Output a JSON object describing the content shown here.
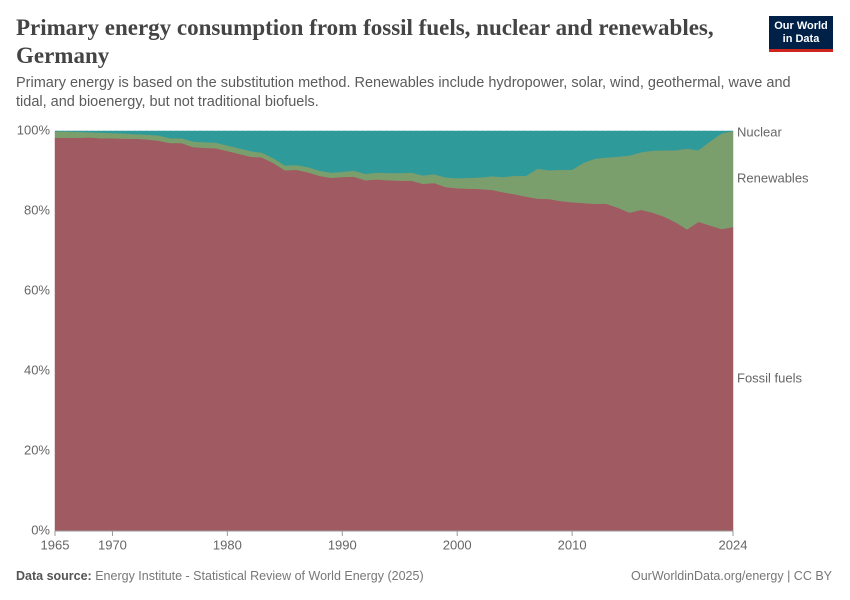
{
  "chart_data": {
    "type": "stacked-area",
    "title": "Primary energy consumption from fossil fuels, nuclear and renewables, Germany",
    "subtitle": "Primary energy is based on the substitution method. Renewables include hydropower, solar, wind, geothermal, wave and tidal, and bioenergy, but not traditional biofuels.",
    "logo": [
      "Our World",
      "in Data"
    ],
    "source_label": "Data source:",
    "source": "Energy Institute - Statistical Review of World Energy (2025)",
    "credit": "OurWorldinData.org/energy | CC BY",
    "x": [
      1965,
      1966,
      1967,
      1968,
      1969,
      1970,
      1971,
      1972,
      1973,
      1974,
      1975,
      1976,
      1977,
      1978,
      1979,
      1980,
      1981,
      1982,
      1983,
      1984,
      1985,
      1986,
      1987,
      1988,
      1989,
      1990,
      1991,
      1992,
      1993,
      1994,
      1995,
      1996,
      1997,
      1998,
      1999,
      2000,
      2001,
      2002,
      2003,
      2004,
      2005,
      2006,
      2007,
      2008,
      2009,
      2010,
      2011,
      2012,
      2013,
      2014,
      2015,
      2016,
      2017,
      2018,
      2019,
      2020,
      2021,
      2022,
      2023,
      2024
    ],
    "xlim": [
      1965,
      2024
    ],
    "xticks": [
      1965,
      1970,
      1980,
      1990,
      2000,
      2010,
      2024
    ],
    "ylim": [
      0,
      100
    ],
    "yticks": [
      {
        "value": 0,
        "label": "0%"
      },
      {
        "value": 20,
        "label": "20%"
      },
      {
        "value": 40,
        "label": "40%"
      },
      {
        "value": 60,
        "label": "60%"
      },
      {
        "value": 80,
        "label": "80%"
      },
      {
        "value": 100,
        "label": "100%"
      }
    ],
    "grid": true,
    "series": [
      {
        "name": "Fossil fuels",
        "color": "#a05a61",
        "label_color": "#883039",
        "values": [
          98.3,
          98.3,
          98.3,
          98.4,
          98.2,
          98.2,
          98.1,
          98.1,
          97.9,
          97.6,
          97.0,
          97.0,
          96.0,
          95.8,
          95.7,
          95.0,
          94.3,
          93.6,
          93.4,
          92.0,
          90.2,
          90.3,
          89.7,
          88.8,
          88.3,
          88.5,
          88.6,
          87.7,
          87.9,
          87.7,
          87.6,
          87.6,
          86.8,
          87.0,
          86.0,
          85.7,
          85.6,
          85.5,
          85.3,
          84.7,
          84.2,
          83.6,
          83.1,
          83.0,
          82.5,
          82.2,
          82.0,
          81.8,
          81.8,
          80.8,
          79.6,
          80.3,
          79.6,
          78.6,
          77.2,
          75.4,
          77.3,
          76.4,
          75.5,
          76.0
        ]
      },
      {
        "name": "Renewables",
        "color": "#7b9e6d",
        "label_color": "#4c7a3a",
        "values": [
          1.6,
          1.6,
          1.5,
          1.3,
          1.4,
          1.3,
          1.3,
          1.1,
          1.2,
          1.3,
          1.2,
          1.2,
          1.4,
          1.4,
          1.4,
          1.4,
          1.4,
          1.4,
          1.2,
          1.2,
          1.2,
          1.2,
          1.3,
          1.3,
          1.3,
          1.3,
          1.5,
          1.6,
          1.7,
          1.8,
          1.9,
          2.0,
          2.1,
          2.2,
          2.4,
          2.5,
          2.7,
          2.9,
          3.4,
          3.8,
          4.6,
          5.2,
          7.5,
          7.2,
          7.8,
          8.1,
          10.1,
          11.3,
          11.6,
          12.8,
          14.3,
          14.4,
          15.5,
          16.6,
          18.0,
          20.2,
          17.9,
          21.0,
          23.9,
          24.0
        ]
      },
      {
        "name": "Nuclear",
        "color": "#2f9a9a",
        "label_color": "#1f8585",
        "values": [
          0.1,
          0.1,
          0.2,
          0.3,
          0.4,
          0.5,
          0.6,
          0.8,
          0.9,
          1.1,
          1.8,
          1.8,
          2.6,
          2.8,
          2.9,
          3.6,
          4.3,
          5.0,
          5.4,
          6.8,
          8.6,
          8.5,
          9.0,
          9.9,
          10.4,
          10.2,
          9.9,
          10.7,
          10.4,
          10.5,
          10.5,
          10.4,
          11.1,
          10.8,
          11.6,
          11.8,
          11.7,
          11.6,
          11.3,
          11.5,
          11.2,
          11.2,
          9.4,
          9.8,
          9.7,
          9.7,
          7.9,
          6.9,
          6.6,
          6.4,
          6.1,
          5.3,
          4.9,
          4.8,
          4.8,
          4.4,
          4.8,
          2.6,
          0.6,
          0
        ]
      }
    ]
  }
}
